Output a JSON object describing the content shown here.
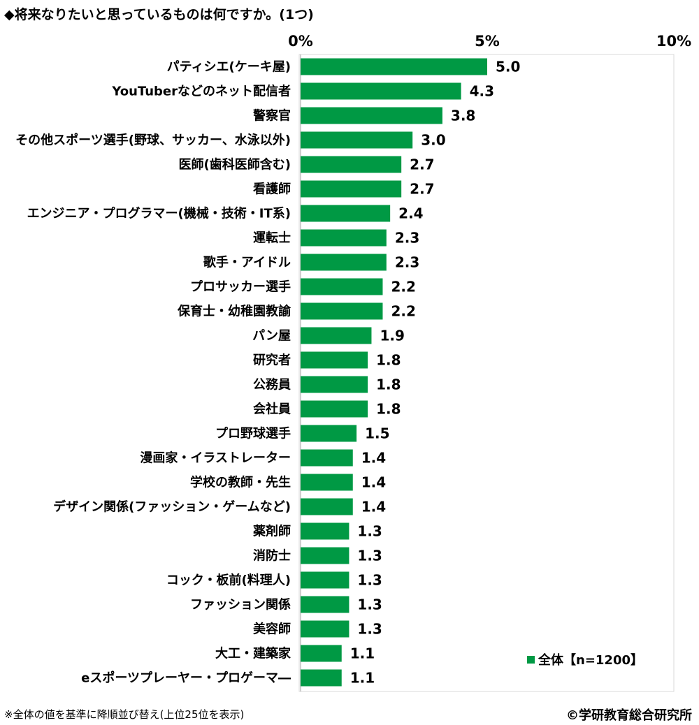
{
  "chart_data": {
    "type": "bar",
    "orientation": "horizontal",
    "title": "◆将来なりたいと思っているものは何ですか。(1つ)",
    "categories": [
      "パティシエ(ケーキ屋)",
      "YouTuberなどのネット配信者",
      "警察官",
      "その他スポーツ選手(野球、サッカー、水泳以外)",
      "医師(歯科医師含む)",
      "看護師",
      "エンジニア・プログラマー(機械・技術・IT系)",
      "運転士",
      "歌手・アイドル",
      "プロサッカー選手",
      "保育士・幼稚園教諭",
      "パン屋",
      "研究者",
      "公務員",
      "会社員",
      "プロ野球選手",
      "漫画家・イラストレーター",
      "学校の教師・先生",
      "デザイン関係(ファッション・ゲームなど)",
      "薬剤師",
      "消防士",
      "コック・板前(料理人)",
      "ファッション関係",
      "美容師",
      "大工・建築家",
      "eスポーツプレーヤー・プロゲーマ―"
    ],
    "series": [
      {
        "name": "全体【n=1200】",
        "color": "#009944",
        "values": [
          5.0,
          4.3,
          3.8,
          3.0,
          2.7,
          2.7,
          2.4,
          2.3,
          2.3,
          2.2,
          2.2,
          1.9,
          1.8,
          1.8,
          1.8,
          1.5,
          1.4,
          1.4,
          1.4,
          1.3,
          1.3,
          1.3,
          1.3,
          1.3,
          1.1,
          1.1
        ],
        "labels": [
          "5.0",
          "4.3",
          "3.8",
          "3.0",
          "2.7",
          "2.7",
          "2.4",
          "2.3",
          "2.3",
          "2.2",
          "2.2",
          "1.9",
          "1.8",
          "1.8",
          "1.8",
          "1.5",
          "1.4",
          "1.4",
          "1.4",
          "1.3",
          "1.3",
          "1.3",
          "1.3",
          "1.3",
          "1.1",
          "1.1"
        ]
      }
    ],
    "xlim": [
      0,
      10
    ],
    "ticks": [
      0,
      5,
      10
    ],
    "tick_labels": [
      "0%",
      "5%",
      "10%"
    ],
    "grid": false,
    "legend": {
      "label": "全体【n=1200】",
      "position": "bottom-right"
    }
  },
  "footnote": "※全体の値を基準に降順並び替え(上位25位を表示)",
  "copyright": "©学研教育総合研究所",
  "colors": {
    "bar": "#009944",
    "frame": "#d9d9d9",
    "axis": "#bfbfbf"
  }
}
